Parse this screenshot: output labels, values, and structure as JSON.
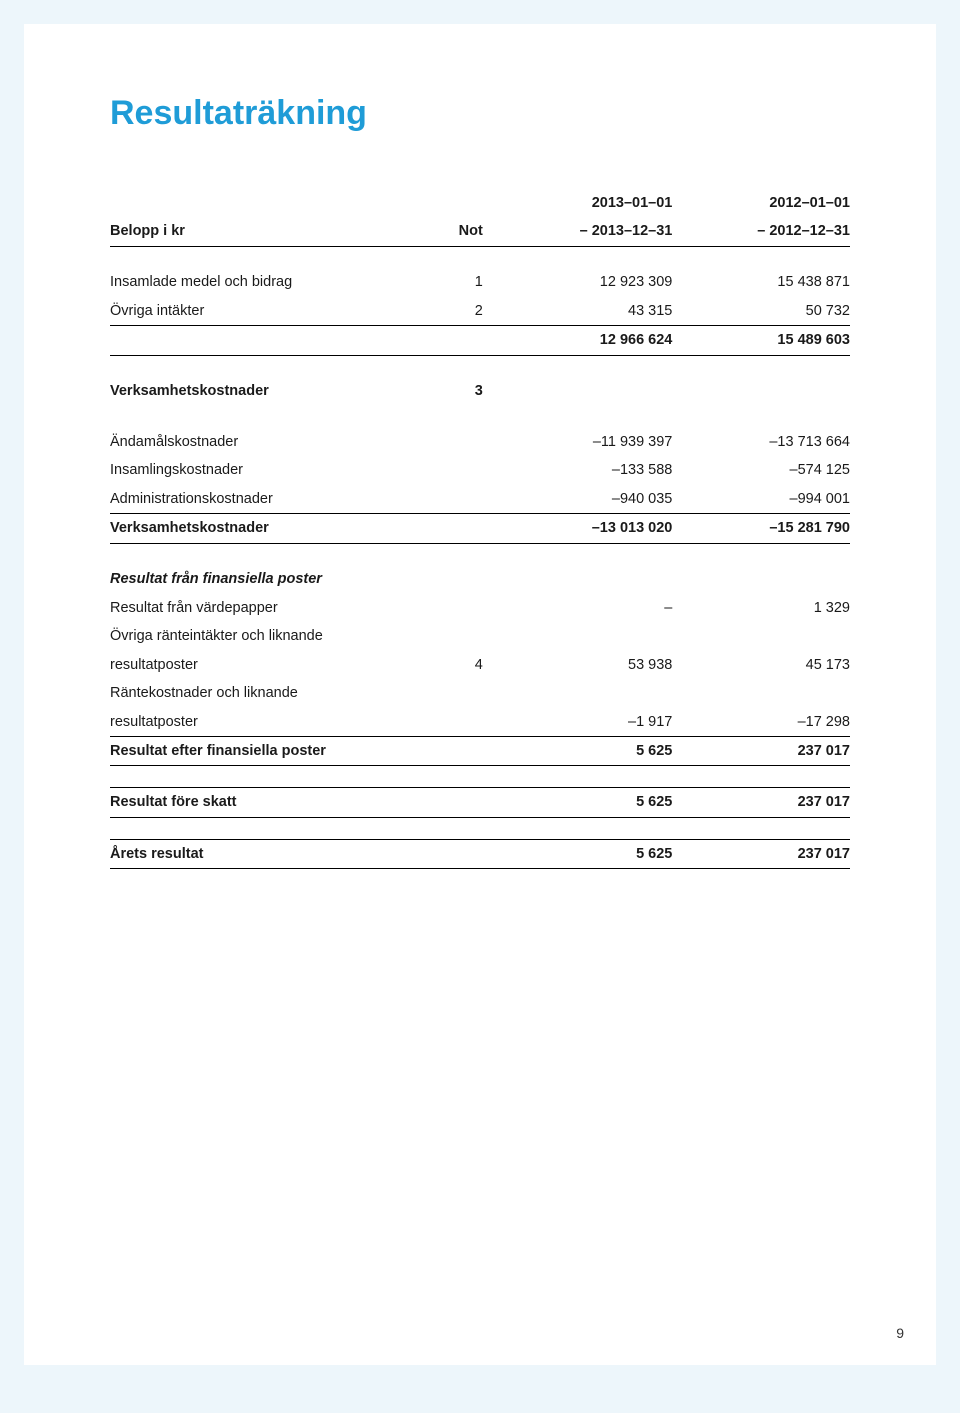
{
  "title": "Resultaträkning",
  "page_number": "9",
  "colors": {
    "page_bg": "#edf6fb",
    "sheet_bg": "#ffffff",
    "title_color": "#1f9cd7",
    "text_color": "#1a1a1a",
    "rule_color": "#000000"
  },
  "typography": {
    "title_fontsize_pt": 26,
    "body_fontsize_pt": 11,
    "font_family": "Arial, Helvetica, sans-serif"
  },
  "table": {
    "type": "table",
    "column_widths_pct": [
      44,
      8,
      24,
      24
    ],
    "column_align": [
      "left",
      "right",
      "right",
      "right"
    ],
    "rows": [
      {
        "cells": [
          "",
          "",
          "2013–01–01",
          "2012–01–01"
        ],
        "bold": true
      },
      {
        "cells": [
          "Belopp i kr",
          "Not",
          "– 2013–12–31",
          "– 2012–12–31"
        ],
        "bold": true,
        "border_bottom": true
      },
      {
        "spacer": true
      },
      {
        "cells": [
          "Insamlade medel och bidrag",
          "1",
          "12 923 309",
          "15 438 871"
        ]
      },
      {
        "cells": [
          "Övriga intäkter",
          "2",
          "43 315",
          "50 732"
        ],
        "border_bottom": true
      },
      {
        "cells": [
          "",
          "",
          "12 966 624",
          "15 489 603"
        ],
        "bold": true,
        "border_bottom": true
      },
      {
        "spacer": true
      },
      {
        "cells": [
          "Verksamhetskostnader",
          "3",
          "",
          ""
        ],
        "bold": true
      },
      {
        "spacer": true
      },
      {
        "cells": [
          "Ändamålskostnader",
          "",
          "–11 939 397",
          "–13 713 664"
        ]
      },
      {
        "cells": [
          "Insamlingskostnader",
          "",
          "–133 588",
          "–574 125"
        ]
      },
      {
        "cells": [
          "Administrationskostnader",
          "",
          "–940 035",
          "–994 001"
        ],
        "border_bottom": true
      },
      {
        "cells": [
          "Verksamhetskostnader",
          "",
          "–13 013 020",
          "–15 281 790"
        ],
        "bold": true,
        "border_bottom": true
      },
      {
        "spacer": true
      },
      {
        "cells": [
          "Resultat från finansiella poster",
          "",
          "",
          ""
        ],
        "italic": true,
        "bold": true
      },
      {
        "cells": [
          "Resultat från värdepapper",
          "",
          "–",
          "1 329"
        ]
      },
      {
        "cells": [
          "Övriga ränteintäkter och liknande",
          "",
          "",
          ""
        ]
      },
      {
        "cells": [
          "resultatposter",
          "4",
          "53 938",
          "45 173"
        ]
      },
      {
        "cells": [
          "Räntekostnader och liknande",
          "",
          "",
          ""
        ]
      },
      {
        "cells": [
          "resultatposter",
          "",
          "–1 917",
          "–17 298"
        ],
        "border_bottom": true
      },
      {
        "cells": [
          "Resultat efter finansiella poster",
          "",
          "5 625",
          "237 017"
        ],
        "bold": true,
        "border_bottom": true
      },
      {
        "spacer": true
      },
      {
        "cells": [
          "Resultat före skatt",
          "",
          "5 625",
          "237 017"
        ],
        "bold": true,
        "border_top": true,
        "border_bottom": true
      },
      {
        "spacer": true
      },
      {
        "cells": [
          "Årets resultat",
          "",
          "5 625",
          "237 017"
        ],
        "bold": true,
        "border_top": true,
        "border_bottom": true
      }
    ]
  }
}
